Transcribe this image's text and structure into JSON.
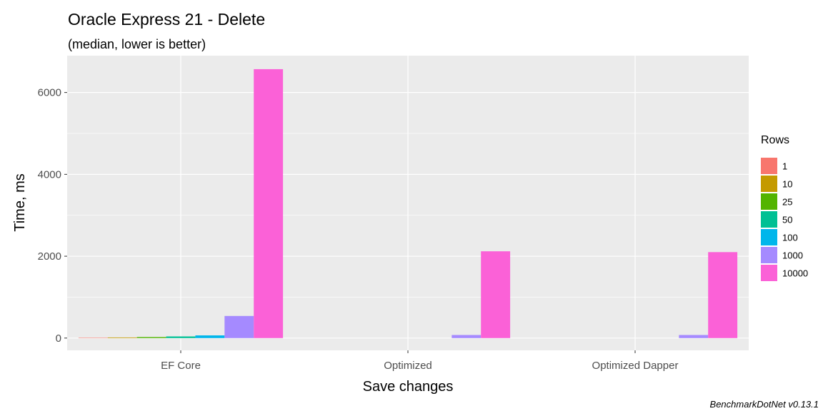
{
  "chart_data": {
    "type": "bar",
    "title": "Oracle Express 21 - Delete",
    "subtitle": "(median, lower is better)",
    "xlabel": "Save changes",
    "ylabel": "Time, ms",
    "caption": "BenchmarkDotNet v0.13.1",
    "categories": [
      "EF Core",
      "Optimized",
      "Optimized Dapper"
    ],
    "ylim": [
      -300,
      6900
    ],
    "yticks": [
      0,
      2000,
      4000,
      6000
    ],
    "grid": true,
    "legend_title": "Rows",
    "legend_position": "right",
    "series": [
      {
        "name": "1",
        "color": "#F8766D",
        "values": [
          10,
          0,
          0
        ]
      },
      {
        "name": "10",
        "color": "#C49A00",
        "values": [
          15,
          0,
          0
        ]
      },
      {
        "name": "25",
        "color": "#53B400",
        "values": [
          25,
          0,
          0
        ]
      },
      {
        "name": "50",
        "color": "#00C094",
        "values": [
          40,
          0,
          0
        ]
      },
      {
        "name": "100",
        "color": "#00B6EB",
        "values": [
          65,
          0,
          0
        ]
      },
      {
        "name": "1000",
        "color": "#A58AFF",
        "values": [
          540,
          75,
          75
        ]
      },
      {
        "name": "10000",
        "color": "#FB61D7",
        "values": [
          6570,
          2120,
          2100
        ]
      }
    ]
  }
}
